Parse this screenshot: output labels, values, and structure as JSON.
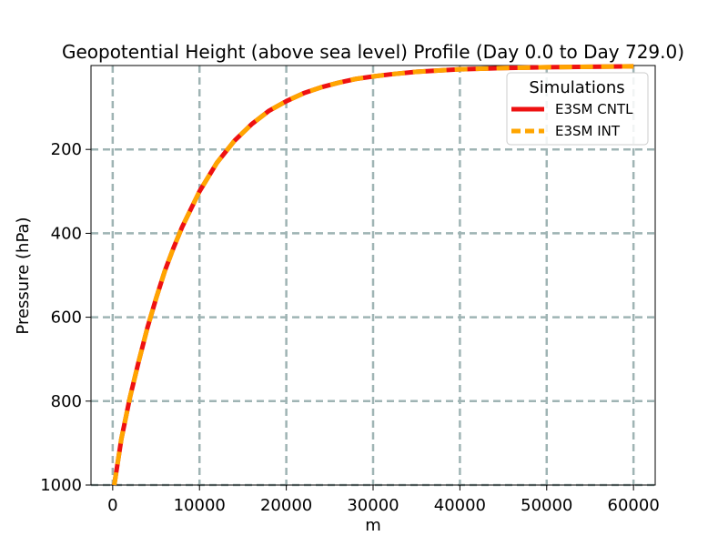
{
  "chart_data": {
    "type": "line",
    "title": "Geopotential Height (above sea level) Profile (Day 0.0 to Day 729.0)",
    "xlabel": "m",
    "ylabel": "Pressure (hPa)",
    "xlim": [
      -2500,
      62500
    ],
    "ylim": [
      1000,
      0
    ],
    "y_inverted": true,
    "grid": true,
    "x_ticks": [
      0,
      10000,
      20000,
      30000,
      40000,
      50000,
      60000
    ],
    "x_tick_labels": [
      "0",
      "10000",
      "20000",
      "30000",
      "40000",
      "50000",
      "60000"
    ],
    "y_ticks": [
      200,
      400,
      600,
      800,
      1000
    ],
    "y_tick_labels": [
      "200",
      "400",
      "600",
      "800",
      "1000"
    ],
    "legend": {
      "title": "Simulations",
      "location": "upper right"
    },
    "series": [
      {
        "name": "E3SM CNTL",
        "color": "#ee1111",
        "style": "solid",
        "x": [
          180,
          1000,
          2000,
          3000,
          4000,
          5000,
          6000,
          7000,
          8000,
          10000,
          12000,
          14000,
          16000,
          18000,
          20000,
          22000,
          24000,
          26000,
          28000,
          30000,
          32000,
          35000,
          40000,
          45000,
          50000,
          55000,
          60000
        ],
        "y": [
          1000,
          890,
          790,
          705,
          625,
          555,
          490,
          435,
          385,
          300,
          232,
          180,
          140,
          108,
          85,
          66,
          52,
          41,
          32,
          26,
          21,
          15,
          9,
          6,
          4,
          3,
          2
        ]
      },
      {
        "name": "E3SM INT",
        "color": "#ffa500",
        "style": "dashed",
        "x": [
          180,
          1000,
          2000,
          3000,
          4000,
          5000,
          6000,
          7000,
          8000,
          10000,
          12000,
          14000,
          16000,
          18000,
          20000,
          22000,
          24000,
          26000,
          28000,
          30000,
          32000,
          35000,
          40000,
          45000,
          50000,
          55000,
          60000
        ],
        "y": [
          1000,
          890,
          790,
          705,
          625,
          555,
          490,
          435,
          385,
          300,
          232,
          180,
          140,
          108,
          85,
          66,
          52,
          41,
          32,
          26,
          21,
          15,
          9,
          6,
          4,
          3,
          2
        ]
      }
    ]
  }
}
